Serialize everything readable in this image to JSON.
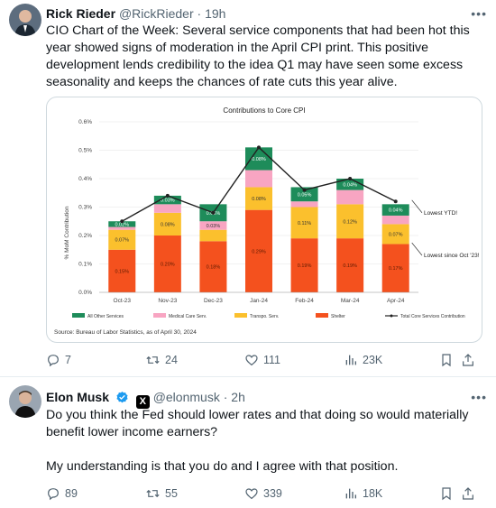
{
  "tweets": [
    {
      "author": {
        "name": "Rick Rieder",
        "handle": "@RickRieder",
        "separator": "·",
        "time": "19h"
      },
      "more_icon": "more-dots-icon",
      "text": [
        "CIO Chart of the Week: Several service components that had been hot this year showed signs of moderation in the April CPI print. This positive development lends credibility to the idea Q1 may have seen some excess seasonality and keeps the chances of rate cuts this year alive."
      ],
      "stats": {
        "replies": "7",
        "retweets": "24",
        "likes": "111",
        "views": "23K"
      }
    },
    {
      "author": {
        "name": "Elon Musk",
        "handle": "@elonmusk",
        "separator": "·",
        "time": "2h",
        "verified_color": "#1d9bf0",
        "affiliate_badge": "X"
      },
      "more_icon": "more-dots-icon",
      "text": [
        "Do you think the Fed should lower rates and that doing so would materially benefit lower income earners?",
        "My understanding is that you do and I agree with that position."
      ],
      "stats": {
        "replies": "89",
        "retweets": "55",
        "likes": "339",
        "views": "18K"
      }
    }
  ],
  "icons": [
    "reply-icon",
    "retweet-icon",
    "like-icon",
    "views-icon",
    "bookmark-icon",
    "share-icon"
  ],
  "colors": {
    "text": "#0f1419",
    "muted": "#536471",
    "border": "#e6ecf0"
  },
  "chart_data": {
    "type": "bar",
    "stacked": true,
    "title": "Contributions to Core CPI",
    "ylabel": "% MoM Contribution",
    "ylim": [
      0,
      0.6
    ],
    "yticks": [
      "0.0%",
      "0.1%",
      "0.2%",
      "0.3%",
      "0.4%",
      "0.5%",
      "0.6%"
    ],
    "categories": [
      "Oct-23",
      "Nov-23",
      "Dec-23",
      "Jan-24",
      "Feb-24",
      "Mar-24",
      "Apr-24"
    ],
    "series": [
      {
        "name": "Shelter",
        "color": "#f4511e",
        "values": [
          0.15,
          0.2,
          0.18,
          0.29,
          0.19,
          0.19,
          0.17
        ],
        "labels": [
          "0.15%",
          "0.20%",
          "0.18%",
          "0.29%",
          "0.19%",
          "0.19%",
          "0.17%"
        ]
      },
      {
        "name": "Transpo. Serv.",
        "color": "#fbc02d",
        "values": [
          0.07,
          0.08,
          0.04,
          0.08,
          0.11,
          0.12,
          0.07
        ],
        "labels": [
          "0.07%",
          "0.08%",
          "",
          "0.08%",
          "0.11%",
          "0.12%",
          "0.07%"
        ]
      },
      {
        "name": "Medical Care Serv.",
        "color": "#f8a5c2",
        "values": [
          0.01,
          0.03,
          0.03,
          0.06,
          0.02,
          0.05,
          0.03
        ],
        "labels": [
          "",
          "",
          "0.03%",
          "",
          "",
          "",
          ""
        ]
      },
      {
        "name": "All Other Services",
        "color": "#1e8c5a",
        "values": [
          0.02,
          0.03,
          0.06,
          0.08,
          0.05,
          0.04,
          0.04
        ],
        "labels": [
          "0.02%",
          "0.03%",
          "0.06%",
          "0.08%",
          "0.05%",
          "0.04%",
          "0.04%"
        ]
      }
    ],
    "line": {
      "name": "Total Core Services Contribution",
      "color": "#222222",
      "values": [
        0.25,
        0.34,
        0.28,
        0.51,
        0.36,
        0.4,
        0.32
      ]
    },
    "annotations": [
      {
        "text": "Lowest YTD!",
        "category": "Apr-24",
        "value": 0.28
      },
      {
        "text": "Lowest since Oct '23!",
        "category": "Apr-24",
        "value": 0.13
      }
    ],
    "source": "Source: Bureau of Labor Statistics, as of April 30, 2024",
    "legend": "bottom",
    "grid": true
  }
}
